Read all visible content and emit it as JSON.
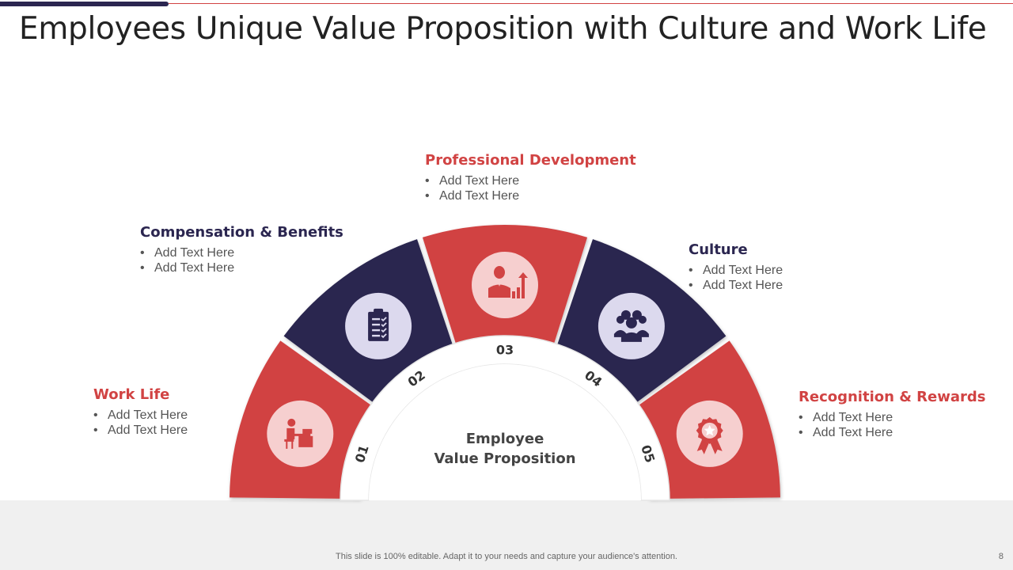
{
  "title": "Employees Unique Value Proposition with Culture and Work Life",
  "center": {
    "line1": "Employee",
    "line2": "Value Proposition"
  },
  "colors": {
    "red": "#d14343",
    "navy": "#2b2650",
    "red_icon_bg": "#f6cfcf",
    "navy_icon_bg": "#dcd9ee"
  },
  "segments": [
    {
      "number": "01",
      "title": "Work Life",
      "icon": "desk-worker-icon",
      "bullets": [
        "Add Text Here",
        "Add Text Here"
      ]
    },
    {
      "number": "02",
      "title": "Compensation & Benefits",
      "icon": "clipboard-checklist-icon",
      "bullets": [
        "Add Text Here",
        "Add Text Here"
      ]
    },
    {
      "number": "03",
      "title": "Professional Development",
      "icon": "growth-chart-person-icon",
      "bullets": [
        "Add Text Here",
        "Add Text Here"
      ]
    },
    {
      "number": "04",
      "title": "Culture",
      "icon": "team-group-icon",
      "bullets": [
        "Add Text Here",
        "Add Text Here"
      ]
    },
    {
      "number": "05",
      "title": "Recognition & Rewards",
      "icon": "award-ribbon-icon",
      "bullets": [
        "Add Text Here",
        "Add Text Here"
      ]
    }
  ],
  "footer": {
    "text": "This slide is 100% editable. Adapt it to your needs and capture your audience's attention.",
    "page": "8"
  }
}
